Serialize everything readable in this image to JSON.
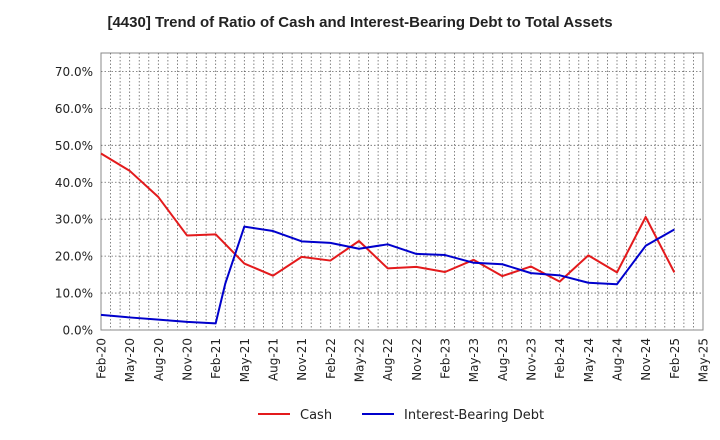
{
  "chart_data": {
    "type": "line",
    "title": "[4430]  Trend of Ratio of Cash and Interest-Bearing Debt to Total Assets",
    "xlabel": "",
    "ylabel": "",
    "ylim": [
      0,
      75
    ],
    "y_ticks": [
      0,
      10,
      20,
      30,
      40,
      50,
      60,
      70
    ],
    "y_tick_labels": [
      "0.0%",
      "10.0%",
      "20.0%",
      "30.0%",
      "40.0%",
      "50.0%",
      "60.0%",
      "70.0%"
    ],
    "x_tick_labels": [
      "Feb-20",
      "May-20",
      "Aug-20",
      "Nov-20",
      "Feb-21",
      "May-21",
      "Aug-21",
      "Nov-21",
      "Feb-22",
      "May-22",
      "Aug-22",
      "Nov-22",
      "Feb-23",
      "May-23",
      "Aug-23",
      "Nov-23",
      "Feb-24",
      "May-24",
      "Aug-24",
      "Nov-24",
      "Feb-25",
      "May-25"
    ],
    "x_months": [
      "Feb-20",
      "Mar-20",
      "Apr-20",
      "May-20",
      "Jun-20",
      "Jul-20",
      "Aug-20",
      "Sep-20",
      "Oct-20",
      "Nov-20",
      "Dec-20",
      "Jan-21",
      "Feb-21",
      "Mar-21",
      "Apr-21",
      "May-21",
      "Jun-21",
      "Jul-21",
      "Aug-21",
      "Sep-21",
      "Oct-21",
      "Nov-21",
      "Dec-21",
      "Jan-22",
      "Feb-22",
      "Mar-22",
      "Apr-22",
      "May-22",
      "Jun-22",
      "Jul-22",
      "Aug-22",
      "Sep-22",
      "Oct-22",
      "Nov-22",
      "Dec-22",
      "Jan-23",
      "Feb-23",
      "Mar-23",
      "Apr-23",
      "May-23",
      "Jun-23",
      "Jul-23",
      "Aug-23",
      "Sep-23",
      "Oct-23",
      "Nov-23",
      "Dec-23",
      "Jan-24",
      "Feb-24",
      "Mar-24",
      "Apr-24",
      "May-24",
      "Jun-24",
      "Jul-24",
      "Aug-24",
      "Sep-24",
      "Oct-24",
      "Nov-24",
      "Dec-24",
      "Jan-25",
      "Feb-25",
      "Mar-25",
      "Apr-25",
      "May-25"
    ],
    "grid": true,
    "legend_position": "bottom",
    "series": [
      {
        "name": "Cash",
        "color": "#e31a1c",
        "points": [
          [
            "Feb-20",
            47.8
          ],
          [
            "May-20",
            43.1
          ],
          [
            "Aug-20",
            36.0
          ],
          [
            "Nov-20",
            25.6
          ],
          [
            "Feb-21",
            25.9
          ],
          [
            "May-21",
            18.0
          ],
          [
            "Aug-21",
            14.7
          ],
          [
            "Nov-21",
            19.8
          ],
          [
            "Feb-22",
            18.8
          ],
          [
            "May-22",
            24.1
          ],
          [
            "Aug-22",
            16.7
          ],
          [
            "Nov-22",
            17.1
          ],
          [
            "Feb-23",
            15.7
          ],
          [
            "May-23",
            19.0
          ],
          [
            "Aug-23",
            14.6
          ],
          [
            "Nov-23",
            17.2
          ],
          [
            "Feb-24",
            13.1
          ],
          [
            "May-24",
            20.2
          ],
          [
            "Aug-24",
            15.6
          ],
          [
            "Nov-24",
            30.6
          ],
          [
            "Feb-25",
            15.6
          ]
        ]
      },
      {
        "name": "Interest-Bearing Debt",
        "color": "#0000cc",
        "points": [
          [
            "Feb-20",
            4.1
          ],
          [
            "May-20",
            3.4
          ],
          [
            "Aug-20",
            2.8
          ],
          [
            "Nov-20",
            2.2
          ],
          [
            "Feb-21",
            1.8
          ],
          [
            "Mar-21",
            12.5
          ],
          [
            "May-21",
            28.0
          ],
          [
            "Aug-21",
            26.8
          ],
          [
            "Nov-21",
            24.0
          ],
          [
            "Feb-22",
            23.6
          ],
          [
            "May-22",
            22.0
          ],
          [
            "Aug-22",
            23.2
          ],
          [
            "Nov-22",
            20.6
          ],
          [
            "Feb-23",
            20.3
          ],
          [
            "May-23",
            18.2
          ],
          [
            "Aug-23",
            17.8
          ],
          [
            "Nov-23",
            15.4
          ],
          [
            "Feb-24",
            14.8
          ],
          [
            "May-24",
            12.8
          ],
          [
            "Aug-24",
            12.4
          ],
          [
            "Nov-24",
            22.8
          ],
          [
            "Feb-25",
            27.2
          ]
        ]
      }
    ]
  }
}
